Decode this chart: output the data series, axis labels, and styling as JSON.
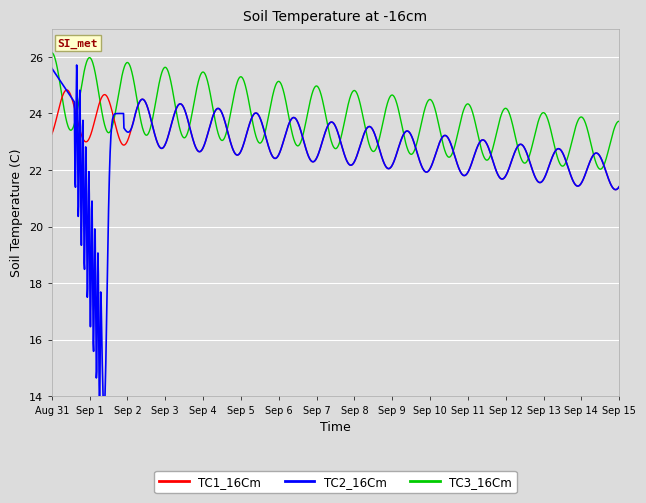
{
  "title": "Soil Temperature at -16cm",
  "xlabel": "Time",
  "ylabel": "Soil Temperature (C)",
  "ylim": [
    14,
    27
  ],
  "yticks": [
    14,
    16,
    18,
    20,
    22,
    24,
    26
  ],
  "bg_color": "#dcdcdc",
  "grid_color": "#ffffff",
  "annotation_text": "SI_met",
  "annotation_bg": "#ffffcc",
  "annotation_border": "#aaaa66",
  "annotation_text_color": "#990000",
  "tc1_color": "#ff0000",
  "tc2_color": "#0000ff",
  "tc3_color": "#00cc00",
  "legend_labels": [
    "TC1_16Cm",
    "TC2_16Cm",
    "TC3_16Cm"
  ],
  "xtick_labels": [
    "Aug 31",
    "Sep 1",
    "Sep 2",
    "Sep 3",
    "Sep 4",
    "Sep 5",
    "Sep 6",
    "Sep 7",
    "Sep 8",
    "Sep 9",
    "Sep 10",
    "Sep 11",
    "Sep 12",
    "Sep 13",
    "Sep 14",
    "Sep 15"
  ]
}
